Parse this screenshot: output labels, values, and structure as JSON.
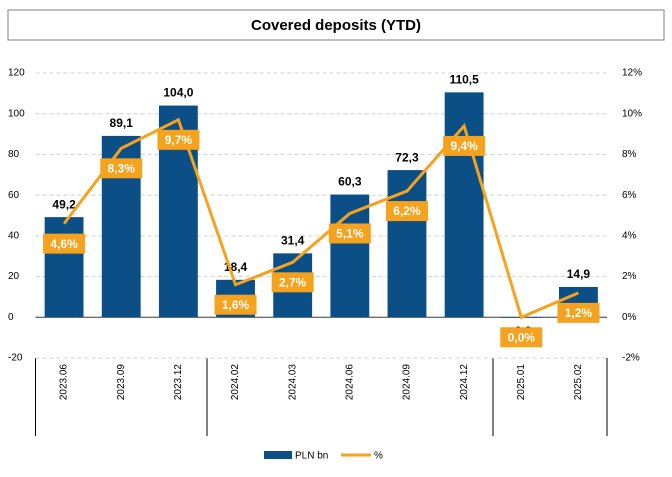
{
  "chart_data": {
    "type": "bar",
    "title": "Covered deposits (YTD)",
    "categories": [
      "2023.06",
      "2023.09",
      "2023.12",
      "2024.02",
      "2024.03",
      "2024.06",
      "2024.09",
      "2024.12",
      "2025.01",
      "2025.02"
    ],
    "series": [
      {
        "name": "PLN bn",
        "type": "bar",
        "axis": "y",
        "color": "#0b4f86",
        "values": [
          49.2,
          89.1,
          104.0,
          18.4,
          31.4,
          60.3,
          72.3,
          110.5,
          -0.2,
          14.9
        ],
        "value_labels": [
          "49,2",
          "89,1",
          "104,0",
          "18,4",
          "31,4",
          "60,3",
          "72,3",
          "110,5",
          "-0,2",
          "14,9"
        ]
      },
      {
        "name": "%",
        "type": "line",
        "axis": "y2",
        "color": "#f5a21e",
        "values": [
          4.6,
          8.3,
          9.7,
          1.6,
          2.7,
          5.1,
          6.2,
          9.4,
          0.0,
          1.2
        ],
        "value_labels": [
          "4,6%",
          "8,3%",
          "9,7%",
          "1,6%",
          "2,7%",
          "5,1%",
          "6,2%",
          "9,4%",
          "0,0%",
          "1,2%"
        ]
      }
    ],
    "ylim": [
      -20,
      120
    ],
    "yticks": [
      -20,
      0,
      20,
      40,
      60,
      80,
      100,
      120
    ],
    "y2lim": [
      -2,
      12
    ],
    "y2ticks": [
      {
        "value": -2,
        "label": "-2%"
      },
      {
        "value": 0,
        "label": "0%"
      },
      {
        "value": 2,
        "label": "2%"
      },
      {
        "value": 4,
        "label": "4%"
      },
      {
        "value": 6,
        "label": "6%"
      },
      {
        "value": 8,
        "label": "8%"
      },
      {
        "value": 10,
        "label": "10%"
      },
      {
        "value": 12,
        "label": "12%"
      }
    ],
    "grid": true,
    "legend": "bottom"
  }
}
